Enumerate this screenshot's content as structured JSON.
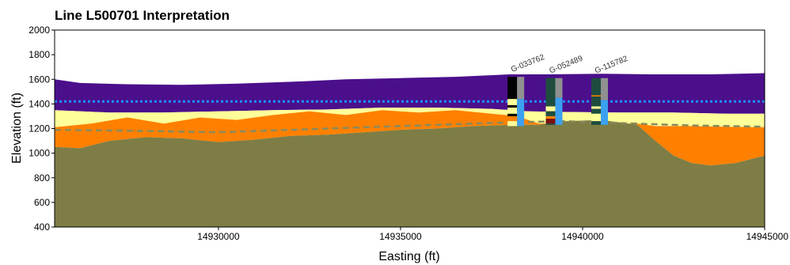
{
  "chart_data": {
    "type": "area",
    "title": "Line L500701 Interpretation",
    "xlabel": "Easting (ft)",
    "ylabel": "Elevation (ft)",
    "xlim": [
      14925500,
      14945000
    ],
    "ylim": [
      400,
      2000
    ],
    "x_ticks": [
      14930000,
      14935000,
      14940000,
      14945000
    ],
    "x_tick_labels": [
      "14930000",
      "14935000",
      "14940000",
      "14945000"
    ],
    "y_ticks": [
      400,
      600,
      800,
      1000,
      1200,
      1400,
      1600,
      1800,
      2000
    ],
    "grid": false,
    "colors": {
      "surface_layer": "#4b0f8c",
      "sand": "#ffff99",
      "clay": "#ff8000",
      "bedrock": "#7e7d45",
      "water_table": "#1e90ff",
      "dashed_contact": "#8a8a5c",
      "well_black": "#000000",
      "well_teal": "#1e4d40",
      "well_grey": "#909090",
      "well_blue": "#3ca0f0"
    },
    "layers": [
      {
        "name": "surface",
        "color": "surface_layer",
        "top": [
          [
            14925500,
            1600
          ],
          [
            14926200,
            1570
          ],
          [
            14927500,
            1560
          ],
          [
            14929000,
            1555
          ],
          [
            14930500,
            1565
          ],
          [
            14932000,
            1580
          ],
          [
            14933500,
            1600
          ],
          [
            14935000,
            1610
          ],
          [
            14936500,
            1620
          ],
          [
            14938000,
            1640
          ],
          [
            14939000,
            1640
          ],
          [
            14940500,
            1645
          ],
          [
            14942000,
            1640
          ],
          [
            14943500,
            1640
          ],
          [
            14945000,
            1650
          ]
        ],
        "bottom": [
          [
            14925500,
            1350
          ],
          [
            14927000,
            1330
          ],
          [
            14928500,
            1330
          ],
          [
            14930000,
            1340
          ],
          [
            14931500,
            1350
          ],
          [
            14933000,
            1355
          ],
          [
            14934500,
            1370
          ],
          [
            14936000,
            1370
          ],
          [
            14937500,
            1360
          ],
          [
            14938500,
            1340
          ],
          [
            14939500,
            1335
          ],
          [
            14941000,
            1330
          ],
          [
            14942500,
            1330
          ],
          [
            14944000,
            1320
          ],
          [
            14945000,
            1320
          ]
        ]
      },
      {
        "name": "sand",
        "color": "sand",
        "top": [
          [
            14925500,
            1350
          ],
          [
            14927000,
            1330
          ],
          [
            14928500,
            1330
          ],
          [
            14930000,
            1340
          ],
          [
            14931500,
            1350
          ],
          [
            14933000,
            1355
          ],
          [
            14934500,
            1370
          ],
          [
            14936000,
            1370
          ],
          [
            14937500,
            1360
          ],
          [
            14938500,
            1340
          ],
          [
            14939500,
            1335
          ],
          [
            14941000,
            1330
          ],
          [
            14942500,
            1330
          ],
          [
            14944000,
            1320
          ],
          [
            14945000,
            1320
          ]
        ],
        "bottom": [
          [
            14925500,
            1200
          ],
          [
            14926500,
            1210
          ],
          [
            14928000,
            1200
          ],
          [
            14929500,
            1205
          ],
          [
            14931000,
            1210
          ],
          [
            14932500,
            1220
          ],
          [
            14934000,
            1230
          ],
          [
            14935500,
            1240
          ],
          [
            14937000,
            1245
          ],
          [
            14938000,
            1240
          ],
          [
            14939500,
            1235
          ],
          [
            14941000,
            1230
          ],
          [
            14942500,
            1220
          ],
          [
            14944000,
            1215
          ],
          [
            14945000,
            1210
          ]
        ]
      },
      {
        "name": "clay",
        "color": "clay",
        "top": [
          [
            14925500,
            1210
          ],
          [
            14926500,
            1240
          ],
          [
            14927500,
            1290
          ],
          [
            14928500,
            1240
          ],
          [
            14929500,
            1290
          ],
          [
            14930500,
            1270
          ],
          [
            14931500,
            1310
          ],
          [
            14932500,
            1340
          ],
          [
            14933500,
            1310
          ],
          [
            14934500,
            1350
          ],
          [
            14935500,
            1330
          ],
          [
            14936500,
            1350
          ],
          [
            14937500,
            1320
          ],
          [
            14938200,
            1300
          ],
          [
            14938800,
            1240
          ],
          [
            14941500,
            1240
          ],
          [
            14942000,
            1220
          ],
          [
            14943000,
            1220
          ],
          [
            14944000,
            1215
          ],
          [
            14945000,
            1210
          ]
        ],
        "bottom": [
          [
            14925500,
            1050
          ],
          [
            14926200,
            1040
          ],
          [
            14927000,
            1100
          ],
          [
            14928000,
            1130
          ],
          [
            14929000,
            1120
          ],
          [
            14930000,
            1090
          ],
          [
            14931000,
            1110
          ],
          [
            14932000,
            1140
          ],
          [
            14933000,
            1150
          ],
          [
            14934000,
            1170
          ],
          [
            14935000,
            1190
          ],
          [
            14936000,
            1200
          ],
          [
            14937000,
            1220
          ],
          [
            14938000,
            1230
          ],
          [
            14938800,
            1230
          ],
          [
            14941500,
            1230
          ],
          [
            14942000,
            1100
          ],
          [
            14942500,
            980
          ],
          [
            14943000,
            920
          ],
          [
            14943500,
            900
          ],
          [
            14944200,
            920
          ],
          [
            14945000,
            980
          ]
        ]
      },
      {
        "name": "bedrock",
        "color": "bedrock",
        "top": [
          [
            14925500,
            1050
          ],
          [
            14926200,
            1040
          ],
          [
            14927000,
            1100
          ],
          [
            14928000,
            1130
          ],
          [
            14929000,
            1120
          ],
          [
            14930000,
            1090
          ],
          [
            14931000,
            1110
          ],
          [
            14932000,
            1140
          ],
          [
            14933000,
            1150
          ],
          [
            14934000,
            1170
          ],
          [
            14935000,
            1190
          ],
          [
            14936000,
            1200
          ],
          [
            14937000,
            1220
          ],
          [
            14938000,
            1230
          ],
          [
            14938800,
            1230
          ],
          [
            14939500,
            1260
          ],
          [
            14940500,
            1270
          ],
          [
            14941500,
            1230
          ],
          [
            14942000,
            1100
          ],
          [
            14942500,
            980
          ],
          [
            14943000,
            920
          ],
          [
            14943500,
            900
          ],
          [
            14944200,
            920
          ],
          [
            14945000,
            980
          ]
        ],
        "bottom": [
          [
            14925500,
            400
          ],
          [
            14945000,
            400
          ]
        ]
      }
    ],
    "water_table": {
      "elevation": 1420,
      "start": 14925500,
      "end": 14945000
    },
    "dashed_contact": [
      [
        14925500,
        1190
      ],
      [
        14928000,
        1180
      ],
      [
        14930000,
        1170
      ],
      [
        14932000,
        1190
      ],
      [
        14934000,
        1210
      ],
      [
        14936000,
        1230
      ],
      [
        14938000,
        1250
      ],
      [
        14939500,
        1260
      ],
      [
        14941500,
        1240
      ],
      [
        14943000,
        1225
      ],
      [
        14945000,
        1215
      ]
    ],
    "wells": [
      {
        "name": "G-033762",
        "x": 14938200,
        "top": 1620,
        "bottom": 1220,
        "lith": [
          [
            1620,
            1440,
            "well_black"
          ],
          [
            1440,
            1390,
            "sand"
          ],
          [
            1390,
            1370,
            "well_black"
          ],
          [
            1370,
            1320,
            "sand"
          ],
          [
            1320,
            1300,
            "well_black"
          ],
          [
            1300,
            1260,
            "clay"
          ],
          [
            1260,
            1220,
            "sand"
          ]
        ],
        "sensor": [
          [
            1620,
            1440,
            "well_grey"
          ],
          [
            1440,
            1220,
            "well_blue"
          ]
        ]
      },
      {
        "name": "G-052489",
        "x": 14939250,
        "top": 1610,
        "bottom": 1230,
        "lith": [
          [
            1610,
            1380,
            "well_teal"
          ],
          [
            1380,
            1340,
            "sand"
          ],
          [
            1340,
            1300,
            "well_teal"
          ],
          [
            1300,
            1280,
            "clay"
          ],
          [
            1280,
            1240,
            "well_red"
          ],
          [
            1240,
            1230,
            "well_teal"
          ]
        ],
        "sensor": [
          [
            1610,
            1450,
            "well_grey"
          ],
          [
            1450,
            1230,
            "well_blue"
          ]
        ]
      },
      {
        "name": "G-115782",
        "x": 14940500,
        "top": 1610,
        "bottom": 1230,
        "lith": [
          [
            1610,
            1470,
            "well_teal"
          ],
          [
            1470,
            1460,
            "clay"
          ],
          [
            1460,
            1380,
            "well_teal"
          ],
          [
            1380,
            1360,
            "sand"
          ],
          [
            1360,
            1320,
            "well_teal"
          ],
          [
            1320,
            1260,
            "sand"
          ],
          [
            1260,
            1230,
            "well_teal"
          ]
        ],
        "sensor": [
          [
            1610,
            1430,
            "well_grey"
          ],
          [
            1430,
            1230,
            "well_blue"
          ]
        ]
      }
    ]
  }
}
